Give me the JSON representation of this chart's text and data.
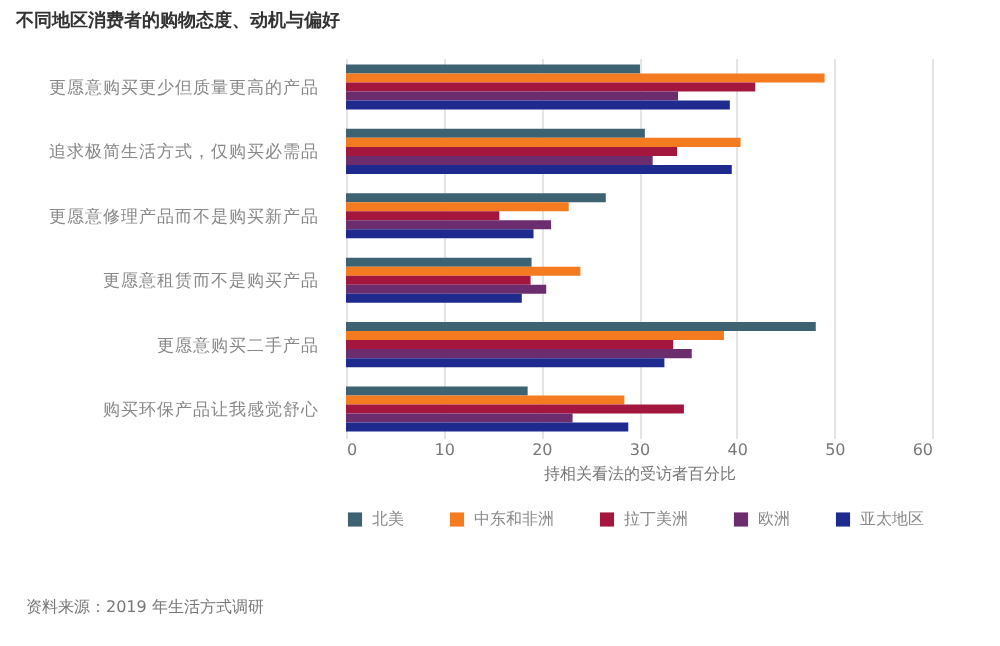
{
  "chart_data": {
    "type": "bar",
    "orientation": "horizontal",
    "title": "不同地区消费者的购物态度、动机与偏好",
    "xlabel": "持相关看法的受访者百分比",
    "categories": [
      "更愿意购买更少但质量更高的产品",
      "追求极简生活方式，仅购买必需品",
      "更愿意修理产品而不是购买新产品",
      "更愿意租赁而不是购买产品",
      "更愿意购买二手产品",
      "购买环保产品让我感觉舒心"
    ],
    "series": [
      {
        "name": "北美",
        "color": "#3d6272",
        "values": [
          30.1,
          30.6,
          26.6,
          19,
          48.1,
          18.6
        ]
      },
      {
        "name": "中东和非洲",
        "color": "#f47b20",
        "values": [
          49,
          40.4,
          22.8,
          24,
          38.7,
          28.5
        ]
      },
      {
        "name": "拉丁美洲",
        "color": "#a3173f",
        "values": [
          41.9,
          33.9,
          15.7,
          18.9,
          33.5,
          34.6
        ]
      },
      {
        "name": "欧洲",
        "color": "#6b2d6e",
        "values": [
          34,
          31.4,
          21,
          20.5,
          35.4,
          23.2
        ]
      },
      {
        "name": "亚太地区",
        "color": "#1f2a8f",
        "values": [
          39.3,
          39.5,
          19.2,
          18,
          32.6,
          28.9
        ]
      }
    ],
    "xlim": [
      0,
      60
    ],
    "xticks": [
      0,
      10,
      20,
      30,
      40,
      50,
      60
    ],
    "grid": "x",
    "legend": "bottom",
    "annotations": [
      "资料来源：2019 年生活方式调研"
    ]
  }
}
